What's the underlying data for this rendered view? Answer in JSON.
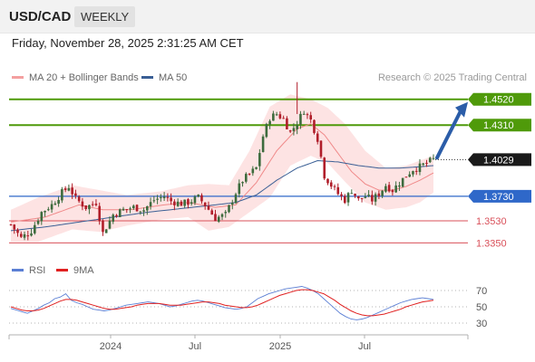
{
  "header": {
    "symbol": "USD/CAD",
    "timeframe": "WEEKLY",
    "datetime": "Friday, November 28, 2025 2:31:25 AM CET",
    "credit": "Research © 2025 Trading Central"
  },
  "legend": {
    "bollinger": {
      "label": "MA 20 + Bollinger Bands",
      "color": "#f4a0a0"
    },
    "ma50": {
      "label": "MA 50",
      "color": "#3a5f95"
    }
  },
  "rsi_legend": {
    "rsi": {
      "label": "RSI",
      "color": "#5b7fd4"
    },
    "ma9": {
      "label": "9MA",
      "color": "#e02020"
    }
  },
  "colors": {
    "bull": "#3d6b3d",
    "bear": "#b01e2a",
    "resistance": "#4f9a0a",
    "support": "#2f68c9",
    "level": "#d9505a",
    "arrow": "#2b5da8",
    "band_fill": "#fde3e3"
  },
  "chart_data": [
    {
      "type": "candlestick",
      "title": "USD/CAD",
      "timeframe": "weekly",
      "ylim": [
        1.325,
        1.468
      ],
      "x_ticks": [
        "2024",
        "Jul",
        "2025",
        "Jul"
      ],
      "last_price": "1.4029",
      "levels": [
        {
          "value": "1.4520",
          "kind": "resistance"
        },
        {
          "value": "1.4310",
          "kind": "resistance"
        },
        {
          "value": "1.3730",
          "kind": "support"
        },
        {
          "value": "1.3530",
          "kind": "level"
        },
        {
          "value": "1.3350",
          "kind": "level"
        }
      ],
      "projection": {
        "direction": "up",
        "target": 1.452
      },
      "close_path": [
        [
          0,
          1.35
        ],
        [
          3,
          1.339
        ],
        [
          6,
          1.345
        ],
        [
          9,
          1.36
        ],
        [
          12,
          1.366
        ],
        [
          15,
          1.376
        ],
        [
          17,
          1.381
        ],
        [
          19,
          1.371
        ],
        [
          22,
          1.364
        ],
        [
          25,
          1.368
        ],
        [
          27,
          1.343
        ],
        [
          30,
          1.358
        ],
        [
          33,
          1.362
        ],
        [
          36,
          1.364
        ],
        [
          39,
          1.362
        ],
        [
          42,
          1.37
        ],
        [
          45,
          1.373
        ],
        [
          47,
          1.369
        ],
        [
          50,
          1.367
        ],
        [
          52,
          1.368
        ],
        [
          55,
          1.372
        ],
        [
          57,
          1.366
        ],
        [
          60,
          1.355
        ],
        [
          63,
          1.358
        ],
        [
          66,
          1.376
        ],
        [
          68,
          1.386
        ],
        [
          70,
          1.391
        ],
        [
          72,
          1.396
        ],
        [
          74,
          1.422
        ],
        [
          76,
          1.437
        ],
        [
          78,
          1.44
        ],
        [
          80,
          1.436
        ],
        [
          82,
          1.425
        ],
        [
          84,
          1.433
        ],
        [
          86,
          1.443
        ],
        [
          88,
          1.435
        ],
        [
          90,
          1.42
        ],
        [
          92,
          1.39
        ],
        [
          94,
          1.382
        ],
        [
          96,
          1.375
        ],
        [
          98,
          1.37
        ],
        [
          100,
          1.378
        ],
        [
          102,
          1.37
        ],
        [
          104,
          1.373
        ],
        [
          106,
          1.37
        ],
        [
          108,
          1.375
        ],
        [
          110,
          1.382
        ],
        [
          112,
          1.378
        ],
        [
          114,
          1.384
        ],
        [
          116,
          1.39
        ],
        [
          118,
          1.395
        ],
        [
          120,
          1.397
        ],
        [
          122,
          1.4
        ],
        [
          124,
          1.403
        ]
      ],
      "ma20": [
        [
          0,
          1.352
        ],
        [
          10,
          1.356
        ],
        [
          20,
          1.366
        ],
        [
          27,
          1.362
        ],
        [
          35,
          1.362
        ],
        [
          45,
          1.366
        ],
        [
          52,
          1.368
        ],
        [
          60,
          1.364
        ],
        [
          66,
          1.366
        ],
        [
          72,
          1.384
        ],
        [
          78,
          1.41
        ],
        [
          84,
          1.428
        ],
        [
          88,
          1.432
        ],
        [
          92,
          1.423
        ],
        [
          96,
          1.408
        ],
        [
          100,
          1.393
        ],
        [
          104,
          1.383
        ],
        [
          108,
          1.378
        ],
        [
          112,
          1.378
        ],
        [
          116,
          1.381
        ],
        [
          120,
          1.386
        ],
        [
          124,
          1.392
        ]
      ],
      "ma50": [
        [
          0,
          1.345
        ],
        [
          10,
          1.348
        ],
        [
          20,
          1.352
        ],
        [
          30,
          1.356
        ],
        [
          40,
          1.36
        ],
        [
          50,
          1.363
        ],
        [
          60,
          1.366
        ],
        [
          66,
          1.368
        ],
        [
          72,
          1.374
        ],
        [
          78,
          1.386
        ],
        [
          84,
          1.396
        ],
        [
          90,
          1.402
        ],
        [
          96,
          1.401
        ],
        [
          102,
          1.398
        ],
        [
          108,
          1.396
        ],
        [
          114,
          1.396
        ],
        [
          120,
          1.397
        ],
        [
          124,
          1.398
        ]
      ],
      "band_upper": [
        [
          0,
          1.362
        ],
        [
          8,
          1.372
        ],
        [
          18,
          1.382
        ],
        [
          26,
          1.378
        ],
        [
          34,
          1.374
        ],
        [
          44,
          1.377
        ],
        [
          52,
          1.382
        ],
        [
          58,
          1.383
        ],
        [
          64,
          1.382
        ],
        [
          70,
          1.41
        ],
        [
          76,
          1.446
        ],
        [
          82,
          1.456
        ],
        [
          88,
          1.452
        ],
        [
          93,
          1.445
        ],
        [
          98,
          1.432
        ],
        [
          104,
          1.41
        ],
        [
          110,
          1.396
        ],
        [
          116,
          1.398
        ],
        [
          120,
          1.402
        ],
        [
          124,
          1.406
        ]
      ],
      "band_lower": [
        [
          0,
          1.336
        ],
        [
          8,
          1.336
        ],
        [
          18,
          1.346
        ],
        [
          26,
          1.344
        ],
        [
          34,
          1.349
        ],
        [
          44,
          1.354
        ],
        [
          52,
          1.356
        ],
        [
          58,
          1.345
        ],
        [
          64,
          1.348
        ],
        [
          70,
          1.36
        ],
        [
          76,
          1.372
        ],
        [
          82,
          1.398
        ],
        [
          88,
          1.406
        ],
        [
          93,
          1.4
        ],
        [
          98,
          1.385
        ],
        [
          104,
          1.368
        ],
        [
          110,
          1.362
        ],
        [
          116,
          1.364
        ],
        [
          120,
          1.368
        ],
        [
          124,
          1.376
        ]
      ]
    },
    {
      "type": "line",
      "title": "RSI",
      "y_ticks": [
        70,
        50,
        30
      ],
      "guides": [
        70,
        50,
        30
      ],
      "ylim": [
        20,
        80
      ],
      "series": [
        {
          "name": "RSI",
          "values": [
            48,
            46,
            44,
            42,
            45,
            48,
            52,
            55,
            60,
            62,
            66,
            58,
            55,
            53,
            50,
            47,
            46,
            45,
            46,
            48,
            50,
            52,
            53,
            54,
            55,
            56,
            55,
            54,
            52,
            50,
            51,
            53,
            55,
            57,
            58,
            57,
            55,
            53,
            51,
            49,
            48,
            47,
            48,
            50,
            55,
            60,
            63,
            66,
            68,
            70,
            72,
            73,
            74,
            75,
            73,
            70,
            66,
            60,
            54,
            48,
            42,
            38,
            35,
            34,
            35,
            37,
            40,
            43,
            46,
            49,
            52,
            55,
            57,
            59,
            60,
            61,
            60,
            59
          ]
        },
        {
          "name": "9MA",
          "values": [
            50,
            48,
            46,
            45,
            45,
            46,
            48,
            51,
            54,
            57,
            59,
            59,
            58,
            56,
            54,
            52,
            50,
            48,
            47,
            47,
            48,
            49,
            50,
            52,
            53,
            54,
            54,
            54,
            53,
            52,
            52,
            52,
            53,
            54,
            55,
            56,
            56,
            55,
            54,
            52,
            51,
            50,
            49,
            49,
            50,
            52,
            55,
            58,
            61,
            64,
            66,
            68,
            70,
            71,
            71,
            70,
            68,
            66,
            62,
            58,
            53,
            49,
            45,
            42,
            40,
            39,
            39,
            40,
            41,
            43,
            45,
            47,
            50,
            52,
            54,
            56,
            57,
            58
          ]
        }
      ]
    }
  ]
}
